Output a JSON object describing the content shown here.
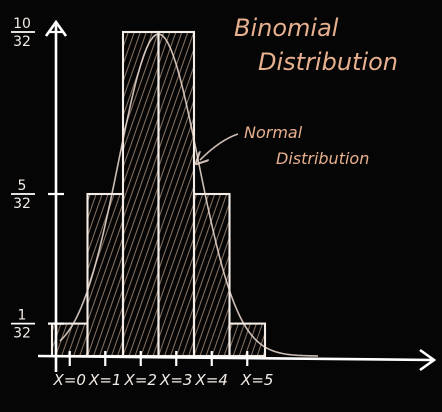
{
  "chart_data": {
    "type": "bar",
    "title_line1": "Binomial",
    "title_line2": "Distribution",
    "annotation_line1": "Normal",
    "annotation_line2": "Distribution",
    "categories": [
      "X=0",
      "X=1",
      "X=2",
      "X=3",
      "X=4",
      "X=5"
    ],
    "values": [
      0.03125,
      0.15625,
      0.3125,
      0.3125,
      0.15625,
      0.03125
    ],
    "yticks": [
      {
        "value": 0.3125,
        "num": "10",
        "den": "32"
      },
      {
        "value": 0.15625,
        "num": "5",
        "den": "32"
      },
      {
        "value": 0.03125,
        "num": "1",
        "den": "32"
      }
    ],
    "ylim": [
      0,
      0.3125
    ],
    "overlay": "normal curve",
    "colors": {
      "background": "#050505",
      "chalk": "#f2ece6",
      "title": "#e7b08f",
      "hatch": "#e6c2a8"
    }
  }
}
